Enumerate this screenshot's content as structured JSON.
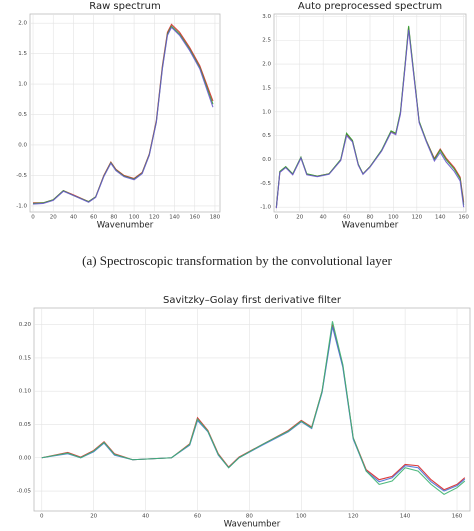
{
  "caption": "(a) Spectroscopic transformation by the convolutional layer",
  "chart_data": [
    {
      "type": "line",
      "title": "Raw spectrum",
      "x_label": "Wavenumber",
      "grid": true,
      "xlim": [
        -3,
        185
      ],
      "xticks": [
        0,
        20,
        40,
        60,
        80,
        100,
        120,
        140,
        160,
        180
      ],
      "ylim": [
        -1.1,
        2.15
      ],
      "yticks": [
        {
          "value": -1.0,
          "label": "-1.0"
        },
        -0.5,
        {
          "value": 0.0,
          "label": "0.0"
        },
        0.5,
        {
          "value": 1.0,
          "label": "1.0"
        },
        1.5,
        {
          "value": 2.0,
          "label": "2.0"
        }
      ],
      "x": [
        0,
        10,
        20,
        30,
        40,
        55,
        62,
        70,
        77,
        82,
        90,
        100,
        108,
        115,
        122,
        128,
        133,
        137,
        145,
        155,
        165,
        178
      ],
      "series": [
        {
          "color": "#d62728",
          "values": [
            -0.95,
            -0.95,
            -0.9,
            -0.75,
            -0.82,
            -0.93,
            -0.85,
            -0.5,
            -0.28,
            -0.4,
            -0.5,
            -0.55,
            -0.45,
            -0.15,
            0.4,
            1.3,
            1.85,
            1.98,
            1.85,
            1.6,
            1.3,
            0.72
          ]
        },
        {
          "color": "#2ca02c",
          "values": [
            -0.96,
            -0.95,
            -0.9,
            -0.75,
            -0.83,
            -0.93,
            -0.85,
            -0.51,
            -0.29,
            -0.41,
            -0.51,
            -0.56,
            -0.46,
            -0.16,
            0.38,
            1.27,
            1.82,
            1.95,
            1.82,
            1.57,
            1.27,
            0.67
          ]
        },
        {
          "color": "#6a5acd",
          "values": [
            -0.97,
            -0.96,
            -0.91,
            -0.76,
            -0.83,
            -0.94,
            -0.86,
            -0.52,
            -0.3,
            -0.42,
            -0.52,
            -0.57,
            -0.47,
            -0.17,
            0.37,
            1.25,
            1.8,
            1.93,
            1.8,
            1.55,
            1.25,
            0.62
          ]
        }
      ]
    },
    {
      "type": "line",
      "title": "Auto preprocessed spectrum",
      "x_label": "Wavenumber",
      "grid": true,
      "xlim": [
        -2,
        162
      ],
      "xticks": [
        0,
        20,
        40,
        60,
        80,
        100,
        120,
        140,
        160
      ],
      "ylim": [
        -1.1,
        3.05
      ],
      "yticks": [
        {
          "value": -1.0,
          "label": "-1.0"
        },
        -0.5,
        {
          "value": 0.0,
          "label": "0.0"
        },
        0.5,
        {
          "value": 1.0,
          "label": "1.0"
        },
        1.5,
        {
          "value": 2.0,
          "label": "2.0"
        },
        2.5,
        {
          "value": 3.0,
          "label": "3.0"
        }
      ],
      "x": [
        0,
        3,
        8,
        14,
        21,
        26,
        35,
        45,
        55,
        60,
        65,
        70,
        74,
        80,
        90,
        98,
        102,
        106,
        110,
        113,
        117,
        122,
        128,
        135,
        140,
        145,
        152,
        157,
        160
      ],
      "series": [
        {
          "color": "#d62728",
          "values": [
            -1.01,
            -0.26,
            -0.16,
            -0.31,
            0.04,
            -0.31,
            -0.35,
            -0.3,
            -0.01,
            0.53,
            0.39,
            -0.11,
            -0.3,
            -0.15,
            0.19,
            0.59,
            0.54,
            0.98,
            1.98,
            2.77,
            1.88,
            0.79,
            0.4,
            0.02,
            0.22,
            0.03,
            -0.17,
            -0.37,
            -0.9
          ]
        },
        {
          "color": "#2ca02c",
          "values": [
            -1.0,
            -0.25,
            -0.15,
            -0.3,
            0.05,
            -0.3,
            -0.35,
            -0.3,
            0.0,
            0.55,
            0.4,
            -0.1,
            -0.3,
            -0.15,
            0.2,
            0.6,
            0.55,
            1.0,
            2.0,
            2.8,
            1.9,
            0.8,
            0.4,
            0.0,
            0.2,
            0.0,
            -0.2,
            -0.4,
            -0.95
          ]
        },
        {
          "color": "#6a5acd",
          "values": [
            -1.02,
            -0.27,
            -0.17,
            -0.32,
            0.03,
            -0.32,
            -0.36,
            -0.31,
            -0.02,
            0.5,
            0.37,
            -0.12,
            -0.31,
            -0.16,
            0.18,
            0.57,
            0.52,
            0.95,
            1.95,
            2.72,
            1.85,
            0.77,
            0.38,
            -0.03,
            0.15,
            -0.05,
            -0.25,
            -0.45,
            -1.0
          ]
        }
      ]
    },
    {
      "type": "line",
      "title": "Savitzky–Golay first derivative filter",
      "x_label": "Wavenumber",
      "grid": true,
      "xlim": [
        -3,
        165
      ],
      "xticks": [
        0,
        20,
        40,
        60,
        80,
        100,
        120,
        140,
        160
      ],
      "ylim": [
        -0.08,
        0.225
      ],
      "yticks": [
        -0.05,
        {
          "value": 0.0,
          "label": "0.00"
        },
        0.05,
        {
          "value": 0.1,
          "label": "0.10"
        },
        0.15,
        {
          "value": 0.2,
          "label": "0.20"
        }
      ],
      "x": [
        0,
        10,
        15,
        20,
        24,
        28,
        35,
        50,
        57,
        60,
        64,
        68,
        72,
        76,
        85,
        95,
        100,
        104,
        108,
        112,
        116,
        120,
        125,
        130,
        135,
        140,
        145,
        150,
        155,
        160,
        163
      ],
      "series": [
        {
          "color": "#d62728",
          "values": [
            0.0,
            0.008,
            0.001,
            0.011,
            0.024,
            0.006,
            -0.003,
            0.0,
            0.021,
            0.06,
            0.041,
            0.006,
            -0.014,
            0.001,
            0.02,
            0.041,
            0.056,
            0.046,
            0.1,
            0.2,
            0.138,
            0.03,
            -0.018,
            -0.033,
            -0.028,
            -0.01,
            -0.012,
            -0.033,
            -0.048,
            -0.04,
            -0.03
          ]
        },
        {
          "color": "#4a6fd6",
          "values": [
            0.0,
            0.006,
            0.0,
            0.009,
            0.022,
            0.004,
            -0.003,
            0.0,
            0.019,
            0.056,
            0.039,
            0.004,
            -0.015,
            0.0,
            0.019,
            0.039,
            0.054,
            0.044,
            0.098,
            0.197,
            0.136,
            0.028,
            -0.02,
            -0.036,
            -0.03,
            -0.012,
            -0.015,
            -0.036,
            -0.05,
            -0.042,
            -0.032
          ]
        },
        {
          "color": "#3cb371",
          "values": [
            0.0,
            0.007,
            0.0,
            0.01,
            0.023,
            0.005,
            -0.003,
            0.0,
            0.02,
            0.058,
            0.04,
            0.005,
            -0.015,
            0.0,
            0.02,
            0.04,
            0.055,
            0.045,
            0.1,
            0.205,
            0.14,
            0.03,
            -0.02,
            -0.04,
            -0.035,
            -0.015,
            -0.02,
            -0.04,
            -0.055,
            -0.045,
            -0.035
          ]
        }
      ]
    }
  ]
}
